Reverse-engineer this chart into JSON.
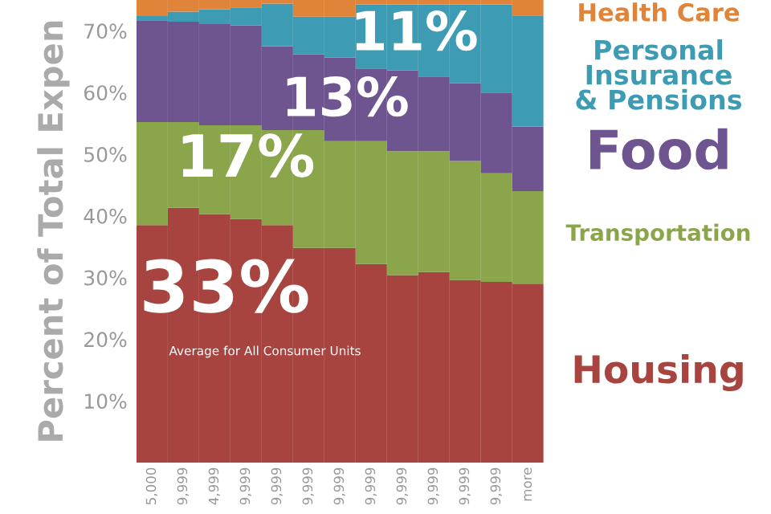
{
  "chart_data": {
    "type": "bar",
    "stacked": true,
    "ylabel": "Percent of Total Expen",
    "categories": [
      "5,000",
      "9,999",
      "4,999",
      "9,999",
      "9,999",
      "9,999",
      "9,999",
      "9,999",
      "9,999",
      "9,999",
      "9,999",
      "9,999",
      "more"
    ],
    "series": [
      {
        "name": "Housing",
        "color": "#a84440",
        "values": [
          38.5,
          41.3,
          40.3,
          39.5,
          38.5,
          34.8,
          34.8,
          32.2,
          30.4,
          30.9,
          29.6,
          29.3,
          29.0
        ]
      },
      {
        "name": "Transportation",
        "color": "#8aa54a",
        "values": [
          16.7,
          13.9,
          14.4,
          15.2,
          15.4,
          19.1,
          17.3,
          19.9,
          20.1,
          19.6,
          19.3,
          17.6,
          15.0
        ]
      },
      {
        "name": "Food",
        "color": "#6e5590",
        "values": [
          16.5,
          16.3,
          16.4,
          16.2,
          13.6,
          12.3,
          13.6,
          11.8,
          13.1,
          12.1,
          12.6,
          13.1,
          10.5
        ]
      },
      {
        "name": "Personal Insurance & Pensions",
        "color": "#3d9bb3",
        "values": [
          0.7,
          1.6,
          2.4,
          2.9,
          6.9,
          6.1,
          6.6,
          10.4,
          10.7,
          11.7,
          12.8,
          14.3,
          18.0
        ]
      },
      {
        "name": "Health Care",
        "color": "#e0843a",
        "values": [
          2.6,
          1.9,
          1.5,
          1.2,
          0.6,
          2.7,
          2.7,
          0.7,
          0.7,
          0.7,
          0.7,
          0.7,
          2.5
        ]
      }
    ],
    "ylim": [
      0,
      75
    ],
    "yticks": [
      {
        "value": 10,
        "label": "10%"
      },
      {
        "value": 20,
        "label": "20%"
      },
      {
        "value": 30,
        "label": "30%"
      },
      {
        "value": 40,
        "label": "40%"
      },
      {
        "value": 50,
        "label": "50%"
      },
      {
        "value": 60,
        "label": "60%"
      },
      {
        "value": 70,
        "label": "70%"
      }
    ],
    "annotations": [
      "33%",
      "Average for All Consumer Units",
      "17%",
      "13%",
      "11%"
    ],
    "grid": false,
    "legend": false
  }
}
